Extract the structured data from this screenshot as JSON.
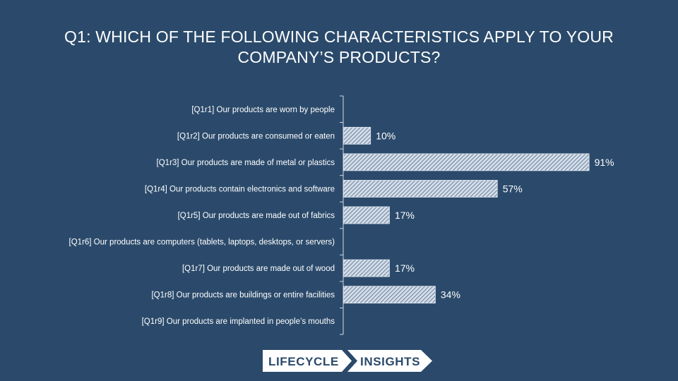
{
  "title_lines": [
    "Q1: WHICH OF THE FOLLOWING CHARACTERISTICS APPLY TO YOUR",
    "COMPANY’S PRODUCTS?"
  ],
  "chart_data": {
    "type": "bar",
    "orientation": "horizontal",
    "title": "Q1: WHICH OF THE FOLLOWING CHARACTERISTICS APPLY TO YOUR COMPANY’S PRODUCTS?",
    "categories": [
      "[Q1r1] Our products are worn by people",
      "[Q1r2] Our products are consumed or eaten",
      "[Q1r3] Our products are made of metal or plastics",
      "[Q1r4] Our products contain electronics and software",
      "[Q1r5] Our products are made out of fabrics",
      "[Q1r6] Our products are computers (tablets, laptops, desktops, or servers)",
      "[Q1r7] Our products are made out of wood",
      "[Q1r8] Our products are buildings or entire facilities",
      "[Q1r9] Our products are implanted in people’s mouths"
    ],
    "values": [
      null,
      10,
      91,
      57,
      17,
      null,
      17,
      34,
      null
    ],
    "value_labels": [
      "",
      "10%",
      "91%",
      "57%",
      "17%",
      "",
      "17%",
      "34%",
      ""
    ],
    "xlim": [
      0,
      100
    ],
    "grid": false,
    "bar_fill": "#d4dde8",
    "bar_pattern": "diagonal-hatch"
  },
  "logo": {
    "left_text": "LIFECYCLE",
    "right_text": "INSIGHTS"
  },
  "colors": {
    "background": "#2b4a6b",
    "text": "#ffffff",
    "axis": "#d0d8e2",
    "hatch": "#3b5a7e"
  }
}
